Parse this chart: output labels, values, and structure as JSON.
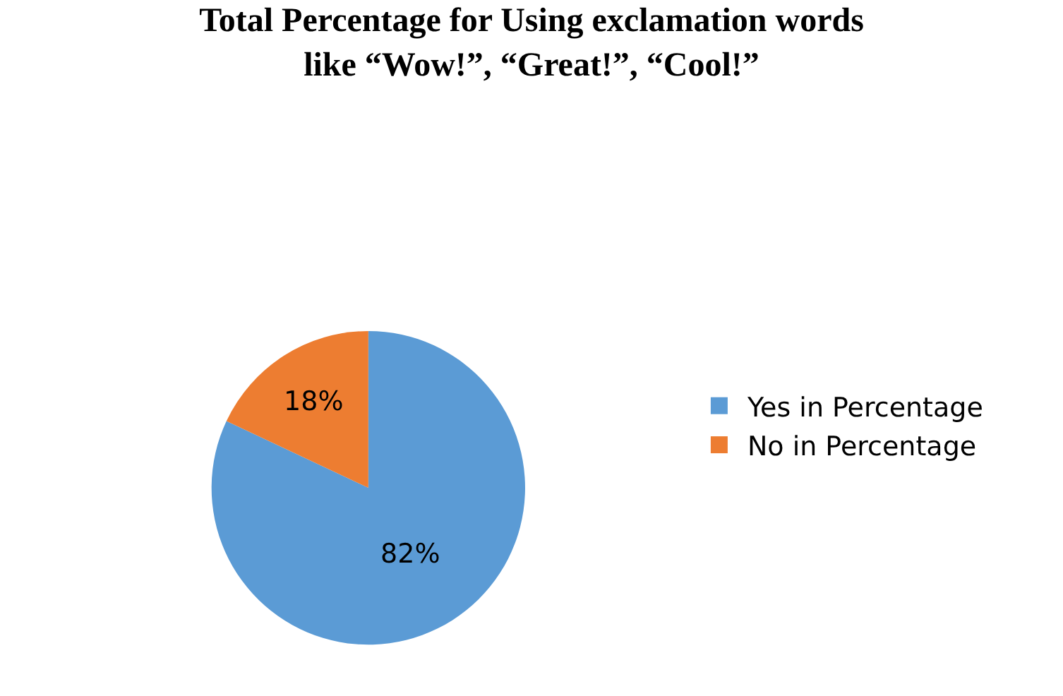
{
  "chart_data": {
    "type": "pie",
    "title": "Total Percentage for Using exclamation words\nlike “Wow!”, “Great!”, “Cool!”",
    "categories": [
      "Yes in Percentage",
      "No in Percentage"
    ],
    "values": [
      82,
      18
    ],
    "colors": [
      "#5b9bd5",
      "#ed7d31"
    ],
    "value_labels": [
      "82%",
      "18%"
    ],
    "legend": "right"
  }
}
